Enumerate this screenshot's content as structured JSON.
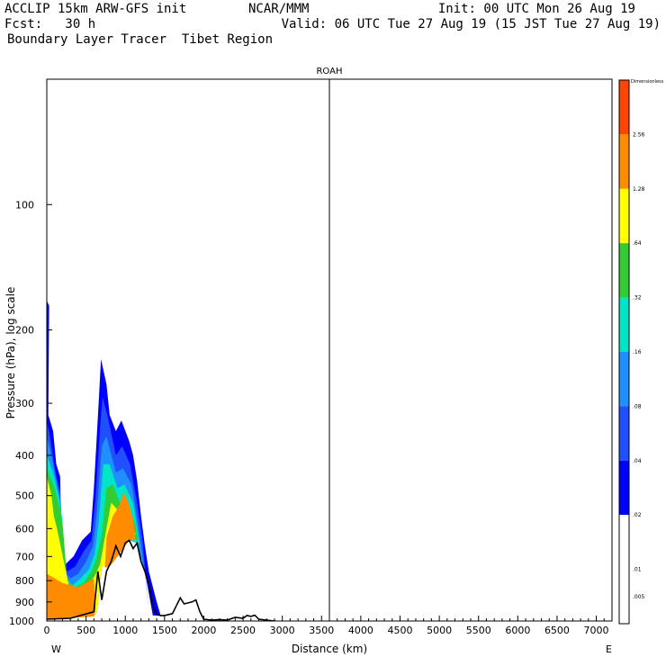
{
  "header": {
    "line1_left": "ACCLIP 15km ARW-GFS init",
    "line1_center": "NCAR/MMM",
    "line1_right": "Init: 00 UTC Mon 26 Aug 19",
    "line2_left": "Fcst:   30 h",
    "line2_right": "Valid: 06 UTC Tue 27 Aug 19 (15 JST Tue 27 Aug 19)",
    "line3_left": "Boundary Layer Tracer  Tibet Region"
  },
  "colors": {
    "c1": "#0000ff",
    "c2": "#1f4fff",
    "c3": "#1e90ff",
    "c4": "#00e5c8",
    "c5": "#32cd32",
    "c6": "#ffff00",
    "c7": "#ff8c00",
    "c8": "#ff4500",
    "terrain": "#000000"
  },
  "chart_data": {
    "type": "heatmap",
    "title": "ROAH",
    "xlabel": "Distance (km)",
    "ylabel": "Pressure (hPa), log scale",
    "xlim": [
      0,
      7200
    ],
    "ylim": [
      1000,
      50
    ],
    "x_ticks": [
      0,
      500,
      1000,
      1500,
      2000,
      2500,
      3000,
      3500,
      4000,
      4500,
      5000,
      5500,
      6000,
      6500,
      7000
    ],
    "y_ticks": [
      100,
      200,
      300,
      400,
      500,
      600,
      700,
      800,
      900,
      1000
    ],
    "x_end_labels": {
      "left": "W",
      "right": "E"
    },
    "vertical_marker_km": 3600,
    "colorbar": {
      "title": "Dimensionless",
      "levels": [
        "2.56",
        "1.28",
        ".64",
        ".32",
        ".16",
        ".08",
        ".04",
        ".02",
        ".01",
        ".005"
      ],
      "colors": [
        "#ff4500",
        "#ff8c00",
        "#ffff00",
        "#32cd32",
        "#00e5c8",
        "#1e90ff",
        "#1f4fff",
        "#0000ff",
        "#ffffff",
        "#ffffff"
      ]
    },
    "terrain": {
      "x": [
        0,
        300,
        600,
        650,
        700,
        760,
        820,
        880,
        940,
        1000,
        1050,
        1100,
        1150,
        1200,
        1250,
        1300,
        1350,
        1400,
        1450,
        1500,
        1600,
        1650,
        1700,
        1750,
        1800,
        1850,
        1900,
        1950,
        2000,
        2100,
        2200,
        2300,
        2400,
        2500,
        2550,
        2600,
        2650,
        2700,
        2800,
        2900,
        3000,
        3200,
        3500,
        4000,
        5000,
        6000,
        7200
      ],
      "p": [
        990,
        985,
        950,
        760,
        890,
        760,
        720,
        660,
        700,
        650,
        640,
        670,
        650,
        720,
        760,
        820,
        920,
        965,
        970,
        970,
        960,
        920,
        880,
        910,
        905,
        900,
        890,
        950,
        990,
        995,
        992,
        995,
        980,
        985,
        970,
        975,
        968,
        990,
        995,
        1000,
        1005,
        1008,
        1010,
        1012,
        1012,
        1012,
        1012
      ]
    },
    "tracer": [
      {
        "level": 0.01,
        "points": [
          [
            0,
            170
          ],
          [
            30,
            175
          ],
          [
            20,
            320
          ],
          [
            80,
            350
          ],
          [
            120,
            420
          ],
          [
            170,
            450
          ],
          [
            190,
            700
          ],
          [
            240,
            730
          ],
          [
            340,
            700
          ],
          [
            450,
            640
          ],
          [
            560,
            610
          ],
          [
            600,
            480
          ],
          [
            660,
            300
          ],
          [
            690,
            235
          ],
          [
            760,
            270
          ],
          [
            800,
            320
          ],
          [
            880,
            350
          ],
          [
            950,
            330
          ],
          [
            1050,
            370
          ],
          [
            1100,
            400
          ],
          [
            1150,
            460
          ],
          [
            1200,
            560
          ],
          [
            1250,
            660
          ],
          [
            1300,
            760
          ],
          [
            1400,
            900
          ],
          [
            1450,
            970
          ],
          [
            1350,
            970
          ],
          [
            1250,
            760
          ],
          [
            1150,
            650
          ],
          [
            1050,
            640
          ],
          [
            900,
            700
          ],
          [
            800,
            740
          ],
          [
            700,
            740
          ],
          [
            640,
            950
          ],
          [
            600,
            975
          ],
          [
            0,
            990
          ]
        ]
      },
      {
        "level": 0.02,
        "points": [
          [
            0,
            330
          ],
          [
            40,
            360
          ],
          [
            110,
            440
          ],
          [
            170,
            490
          ],
          [
            200,
            720
          ],
          [
            260,
            760
          ],
          [
            360,
            740
          ],
          [
            470,
            680
          ],
          [
            570,
            640
          ],
          [
            620,
            510
          ],
          [
            680,
            340
          ],
          [
            710,
            290
          ],
          [
            770,
            320
          ],
          [
            880,
            400
          ],
          [
            960,
            380
          ],
          [
            1060,
            420
          ],
          [
            1150,
            520
          ],
          [
            1220,
            640
          ],
          [
            1300,
            960
          ],
          [
            1250,
            760
          ],
          [
            1150,
            650
          ],
          [
            1050,
            640
          ],
          [
            900,
            700
          ],
          [
            800,
            740
          ],
          [
            700,
            740
          ],
          [
            640,
            950
          ],
          [
            600,
            975
          ],
          [
            0,
            990
          ]
        ]
      },
      {
        "level": 0.04,
        "points": [
          [
            0,
            360
          ],
          [
            60,
            400
          ],
          [
            130,
            470
          ],
          [
            180,
            520
          ],
          [
            220,
            760
          ],
          [
            300,
            790
          ],
          [
            400,
            770
          ],
          [
            500,
            720
          ],
          [
            590,
            660
          ],
          [
            640,
            540
          ],
          [
            700,
            380
          ],
          [
            760,
            360
          ],
          [
            880,
            440
          ],
          [
            970,
            430
          ],
          [
            1080,
            470
          ],
          [
            1170,
            600
          ],
          [
            1250,
            760
          ],
          [
            1150,
            650
          ],
          [
            1050,
            640
          ],
          [
            900,
            700
          ],
          [
            800,
            740
          ],
          [
            700,
            740
          ],
          [
            640,
            950
          ],
          [
            600,
            975
          ],
          [
            0,
            990
          ]
        ]
      },
      {
        "level": 0.08,
        "points": [
          [
            0,
            400
          ],
          [
            80,
            440
          ],
          [
            150,
            500
          ],
          [
            200,
            570
          ],
          [
            240,
            790
          ],
          [
            330,
            820
          ],
          [
            430,
            790
          ],
          [
            540,
            750
          ],
          [
            610,
            690
          ],
          [
            660,
            580
          ],
          [
            720,
            420
          ],
          [
            800,
            420
          ],
          [
            900,
            480
          ],
          [
            990,
            470
          ],
          [
            1100,
            520
          ],
          [
            1180,
            650
          ],
          [
            1150,
            650
          ],
          [
            1050,
            640
          ],
          [
            900,
            700
          ],
          [
            800,
            740
          ],
          [
            700,
            740
          ],
          [
            640,
            950
          ],
          [
            600,
            975
          ],
          [
            0,
            990
          ]
        ]
      },
      {
        "level": 0.16,
        "points": [
          [
            0,
            430
          ],
          [
            100,
            480
          ],
          [
            170,
            540
          ],
          [
            210,
            610
          ],
          [
            260,
            800
          ],
          [
            360,
            830
          ],
          [
            470,
            810
          ],
          [
            570,
            760
          ],
          [
            630,
            710
          ],
          [
            700,
            620
          ],
          [
            760,
            480
          ],
          [
            840,
            470
          ],
          [
            930,
            520
          ],
          [
            1010,
            520
          ],
          [
            1120,
            580
          ],
          [
            1160,
            640
          ],
          [
            1050,
            640
          ],
          [
            900,
            700
          ],
          [
            800,
            740
          ],
          [
            700,
            740
          ],
          [
            640,
            950
          ],
          [
            600,
            975
          ],
          [
            0,
            990
          ]
        ]
      },
      {
        "level": 0.32,
        "points": [
          [
            0,
            450
          ],
          [
            60,
            500
          ],
          [
            90,
            560
          ],
          [
            130,
            600
          ],
          [
            280,
            820
          ],
          [
            400,
            840
          ],
          [
            520,
            820
          ],
          [
            610,
            780
          ],
          [
            680,
            730
          ],
          [
            760,
            600
          ],
          [
            820,
            520
          ],
          [
            900,
            540
          ],
          [
            970,
            560
          ],
          [
            1050,
            560
          ],
          [
            1130,
            620
          ],
          [
            1050,
            640
          ],
          [
            900,
            700
          ],
          [
            800,
            740
          ],
          [
            700,
            740
          ],
          [
            640,
            950
          ],
          [
            600,
            975
          ],
          [
            0,
            990
          ]
        ]
      },
      {
        "level": 0.64,
        "points": [
          [
            0,
            770
          ],
          [
            200,
            810
          ],
          [
            400,
            830
          ],
          [
            600,
            790
          ],
          [
            620,
            940
          ],
          [
            600,
            975
          ],
          [
            0,
            990
          ],
          [
            0,
            770
          ]
        ]
      },
      {
        "level": 0.64,
        "points": [
          [
            760,
            630
          ],
          [
            840,
            560
          ],
          [
            920,
            530
          ],
          [
            980,
            490
          ],
          [
            1040,
            520
          ],
          [
            1100,
            570
          ],
          [
            1130,
            640
          ],
          [
            1050,
            640
          ],
          [
            900,
            700
          ],
          [
            800,
            740
          ],
          [
            740,
            745
          ]
        ]
      }
    ]
  }
}
